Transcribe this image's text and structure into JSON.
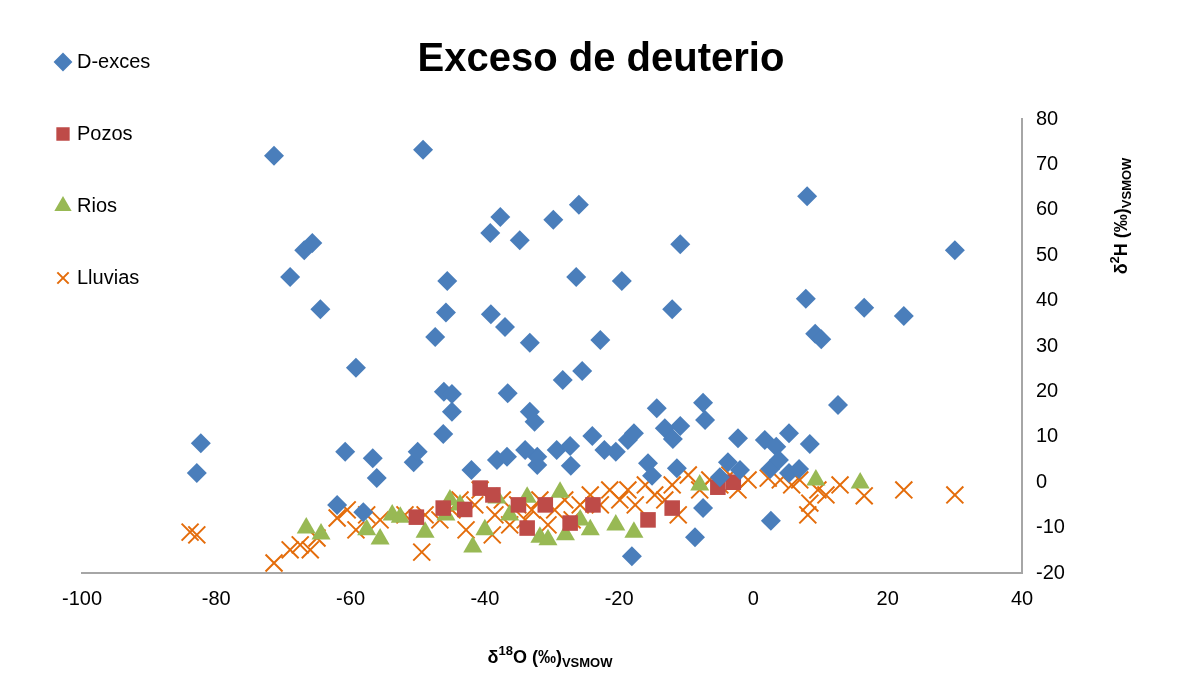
{
  "chart_data": {
    "type": "scatter",
    "title": "Exceso de deuterio",
    "xlabel": "δ$^{18}$O (‰)$_{VSMOW}$",
    "ylabel": "δ$^{2}$H (‰)$_{VSMOW}$",
    "xlim": [
      -100,
      40
    ],
    "xticks": [
      -100,
      -80,
      -60,
      -40,
      -20,
      0,
      20,
      40
    ],
    "ylim": [
      -20,
      80
    ],
    "yticks": [
      -20,
      -10,
      0,
      10,
      20,
      30,
      40,
      50,
      60,
      70,
      80
    ],
    "legend": "top left",
    "series": [
      {
        "name": "D-exces",
        "color": "#4a7ebb",
        "marker": "diamond",
        "x": [
          -82.9,
          -82.3,
          -71.4,
          -69.0,
          -66.9,
          -65.7,
          -64.5,
          -62.0,
          -60.8,
          -59.2,
          -58.1,
          -56.7,
          -56.1,
          -50.6,
          -50.0,
          -49.2,
          -47.4,
          -46.2,
          -46.1,
          -45.8,
          -45.6,
          -44.9,
          -44.9,
          -42.0,
          -39.2,
          -39.1,
          -38.2,
          -37.7,
          -37.0,
          -36.6,
          -36.7,
          -34.8,
          -33.3,
          -33.3,
          -32.6,
          -32.2,
          -32.2,
          -34.0,
          -29.8,
          -28.4,
          -29.3,
          -27.3,
          -27.2,
          -26.4,
          -26.0,
          -25.5,
          -24.0,
          -22.8,
          -22.2,
          -20.5,
          -19.6,
          -18.7,
          -18.1,
          -17.8,
          -15.7,
          -15.1,
          -14.4,
          -13.2,
          -12.1,
          -12.0,
          -11.4,
          -10.9,
          -10.9,
          -8.7,
          -7.5,
          -7.2,
          -7.5,
          -5.0,
          -3.8,
          -2.3,
          -2.0,
          1.7,
          2.5,
          2.6,
          3.4,
          3.8,
          5.3,
          5.3,
          6.8,
          7.8,
          8.0,
          8.4,
          9.2,
          10.1,
          12.6,
          16.5,
          22.4,
          30.0
        ],
        "values": [
          2.0,
          8.6,
          71.9,
          45.2,
          51.1,
          52.7,
          38.1,
          -5.0,
          6.7,
          25.2,
          -6.6,
          5.3,
          0.9,
          4.4,
          6.7,
          73.2,
          32.0,
          10.6,
          19.9,
          37.4,
          44.3,
          15.5,
          19.4,
          2.7,
          54.9,
          37.0,
          4.9,
          58.4,
          34.2,
          19.6,
          5.6,
          53.3,
          30.7,
          15.5,
          13.3,
          3.8,
          5.6,
          7.1,
          57.8,
          22.5,
          7.1,
          8.0,
          3.6,
          45.2,
          61.1,
          24.5,
          10.2,
          31.3,
          7.1,
          6.7,
          44.3,
          9.3,
          -16.3,
          10.8,
          4.2,
          1.4,
          16.3,
          11.9,
          38.1,
          9.5,
          3.1,
          52.4,
          12.4,
          -12.1,
          17.5,
          13.7,
          -5.7,
          1.1,
          4.4,
          9.7,
          2.7,
          9.3,
          2.9,
          -8.5,
          7.8,
          4.9,
          10.8,
          2.0,
          2.9,
          40.4,
          63.0,
          8.4,
          32.7,
          31.5,
          17.0,
          38.4,
          36.6,
          51.1
        ]
      },
      {
        "name": "Pozos",
        "color": "#be4b48",
        "marker": "square",
        "x": [
          -50.2,
          -46.2,
          -43.0,
          -40.7,
          -38.8,
          -35.0,
          -33.7,
          -31.0,
          -27.3,
          -23.9,
          -15.7,
          -12.1,
          -5.3,
          -3.0
        ],
        "values": [
          -7.7,
          -5.7,
          -6.0,
          -1.3,
          -2.8,
          -5.0,
          -10.1,
          -5.0,
          -9.0,
          -5.0,
          -8.3,
          -5.7,
          -1.1,
          0.0
        ]
      },
      {
        "name": "Rios",
        "color": "#98b954",
        "marker": "triangle",
        "x": [
          -66.6,
          -64.4,
          -57.6,
          -55.6,
          -53.8,
          -52.6,
          -48.9,
          -45.8,
          -45.2,
          -43.7,
          -41.8,
          -40.0,
          -38.2,
          -36.3,
          -33.7,
          -31.8,
          -30.6,
          -28.8,
          -28.0,
          -25.8,
          -24.3,
          -20.5,
          -17.8,
          -8.0,
          9.3,
          15.9
        ],
        "values": [
          -10.1,
          -11.4,
          -10.5,
          -12.5,
          -7.2,
          -7.7,
          -11.0,
          -7.2,
          -3.9,
          -5.0,
          -14.3,
          -10.5,
          -3.5,
          -7.2,
          -3.3,
          -12.1,
          -12.7,
          -2.2,
          -11.6,
          -8.3,
          -10.5,
          -9.4,
          -11.0,
          -0.6,
          0.5,
          -0.2
        ]
      },
      {
        "name": "Lluvias",
        "color": "#e46c0a",
        "marker": "cross",
        "x": [
          -83.9,
          -82.9,
          -71.4,
          -69.0,
          -67.5,
          -66.0,
          -65.0,
          -62.0,
          -60.5,
          -59.2,
          -57.6,
          -55.6,
          -51.9,
          -49.4,
          -48.9,
          -46.7,
          -44.9,
          -43.7,
          -42.8,
          -41.5,
          -40.7,
          -38.9,
          -38.5,
          -37.4,
          -36.3,
          -35.1,
          -34.0,
          -33.0,
          -31.8,
          -30.6,
          -29.6,
          -28.1,
          -27.0,
          -25.8,
          -24.3,
          -22.8,
          -21.4,
          -19.9,
          -18.7,
          -17.6,
          -16.1,
          -14.7,
          -13.2,
          -12.1,
          -11.2,
          -9.7,
          -8.0,
          -6.5,
          -5.0,
          -3.5,
          -2.3,
          -0.8,
          2.2,
          4.0,
          5.7,
          6.9,
          8.1,
          8.4,
          9.6,
          10.8,
          12.9,
          16.5,
          22.4,
          30.0
        ],
        "values": [
          -11.0,
          -11.6,
          -17.8,
          -14.9,
          -13.8,
          -14.9,
          -12.3,
          -7.9,
          -6.1,
          -10.5,
          -7.2,
          -8.3,
          -7.2,
          -15.4,
          -7.2,
          -8.3,
          -6.1,
          -3.9,
          -10.5,
          -5.0,
          -1.7,
          -11.6,
          -7.2,
          -3.9,
          -9.4,
          -5.0,
          -8.3,
          -6.1,
          -3.9,
          -9.4,
          -6.1,
          -3.9,
          -8.3,
          -5.0,
          -2.8,
          -5.0,
          -1.7,
          -3.9,
          -1.7,
          -5.0,
          -0.6,
          -2.8,
          -3.9,
          -0.6,
          -7.2,
          1.6,
          -1.7,
          0.5,
          -0.6,
          1.6,
          -1.7,
          0.5,
          0.9,
          0.5,
          -0.6,
          0.5,
          -7.2,
          -4.6,
          -1.7,
          -2.8,
          -0.6,
          -3.0,
          -1.7,
          -2.8
        ]
      }
    ]
  }
}
